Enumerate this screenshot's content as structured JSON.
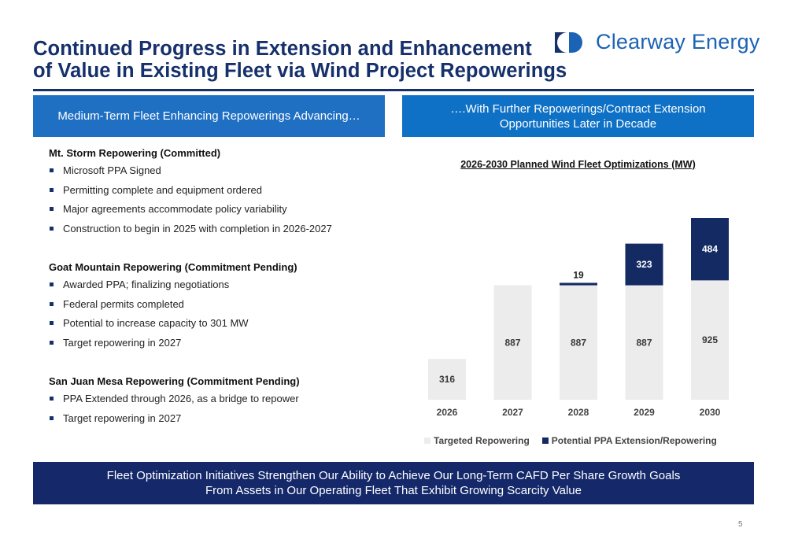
{
  "title": {
    "line1": "Continued Progress in Extension and Enhancement",
    "line2": "of Value in Existing Fleet via Wind Project Repowerings"
  },
  "logo": {
    "text": "Clearway Energy"
  },
  "left_header": "Medium-Term Fleet Enhancing Repowerings Advancing…",
  "right_header": "….With Further Repowerings/Contract Extension Opportunities Later in Decade",
  "sections": [
    {
      "title": "Mt. Storm Repowering (Committed)",
      "bullets": [
        "Microsoft PPA Signed",
        "Permitting complete and equipment ordered",
        "Major agreements accommodate policy variability",
        "Construction to begin in 2025 with completion in 2026-2027"
      ]
    },
    {
      "title": "Goat Mountain Repowering (Commitment Pending)",
      "bullets": [
        "Awarded PPA; finalizing negotiations",
        "Federal permits completed",
        "Potential to increase capacity to 301 MW",
        "Target repowering in 2027"
      ]
    },
    {
      "title": "San Juan Mesa Repowering (Commitment Pending)",
      "bullets": [
        "PPA Extended through 2026, as a bridge to repower",
        "Target repowering in 2027"
      ]
    }
  ],
  "chart_data": {
    "type": "bar",
    "stacked": true,
    "title": "2026-2030 Planned Wind Fleet Optimizations (MW)",
    "categories": [
      "2026",
      "2027",
      "2028",
      "2029",
      "2030"
    ],
    "series": [
      {
        "name": "Targeted Repowering",
        "color": "#ececec",
        "values": [
          316,
          887,
          887,
          887,
          925
        ]
      },
      {
        "name": "Potential PPA Extension/Repowering",
        "color": "#132a63",
        "values": [
          0,
          0,
          19,
          323,
          484
        ]
      }
    ],
    "data_labels": [
      [
        "316",
        "887",
        "887",
        "887",
        "925"
      ],
      [
        "",
        "",
        "19",
        "323",
        "484"
      ]
    ],
    "ylim": [
      0,
      1409
    ],
    "legend": "bottom"
  },
  "footer": {
    "line1": "Fleet Optimization Initiatives Strengthen Our Ability to Achieve Our Long-Term CAFD Per Share Growth Goals",
    "line2": "From Assets in Our Operating Fleet That Exhibit Growing Scarcity Value"
  },
  "page_number": "5",
  "colors": {
    "navy": "#16306b",
    "blue": "#1f6fc3",
    "bar_light": "#ececec",
    "bar_dark": "#132a63"
  },
  "icons": {
    "logo": "clearway-logo-icon",
    "bullet": "square-bullet-icon"
  }
}
